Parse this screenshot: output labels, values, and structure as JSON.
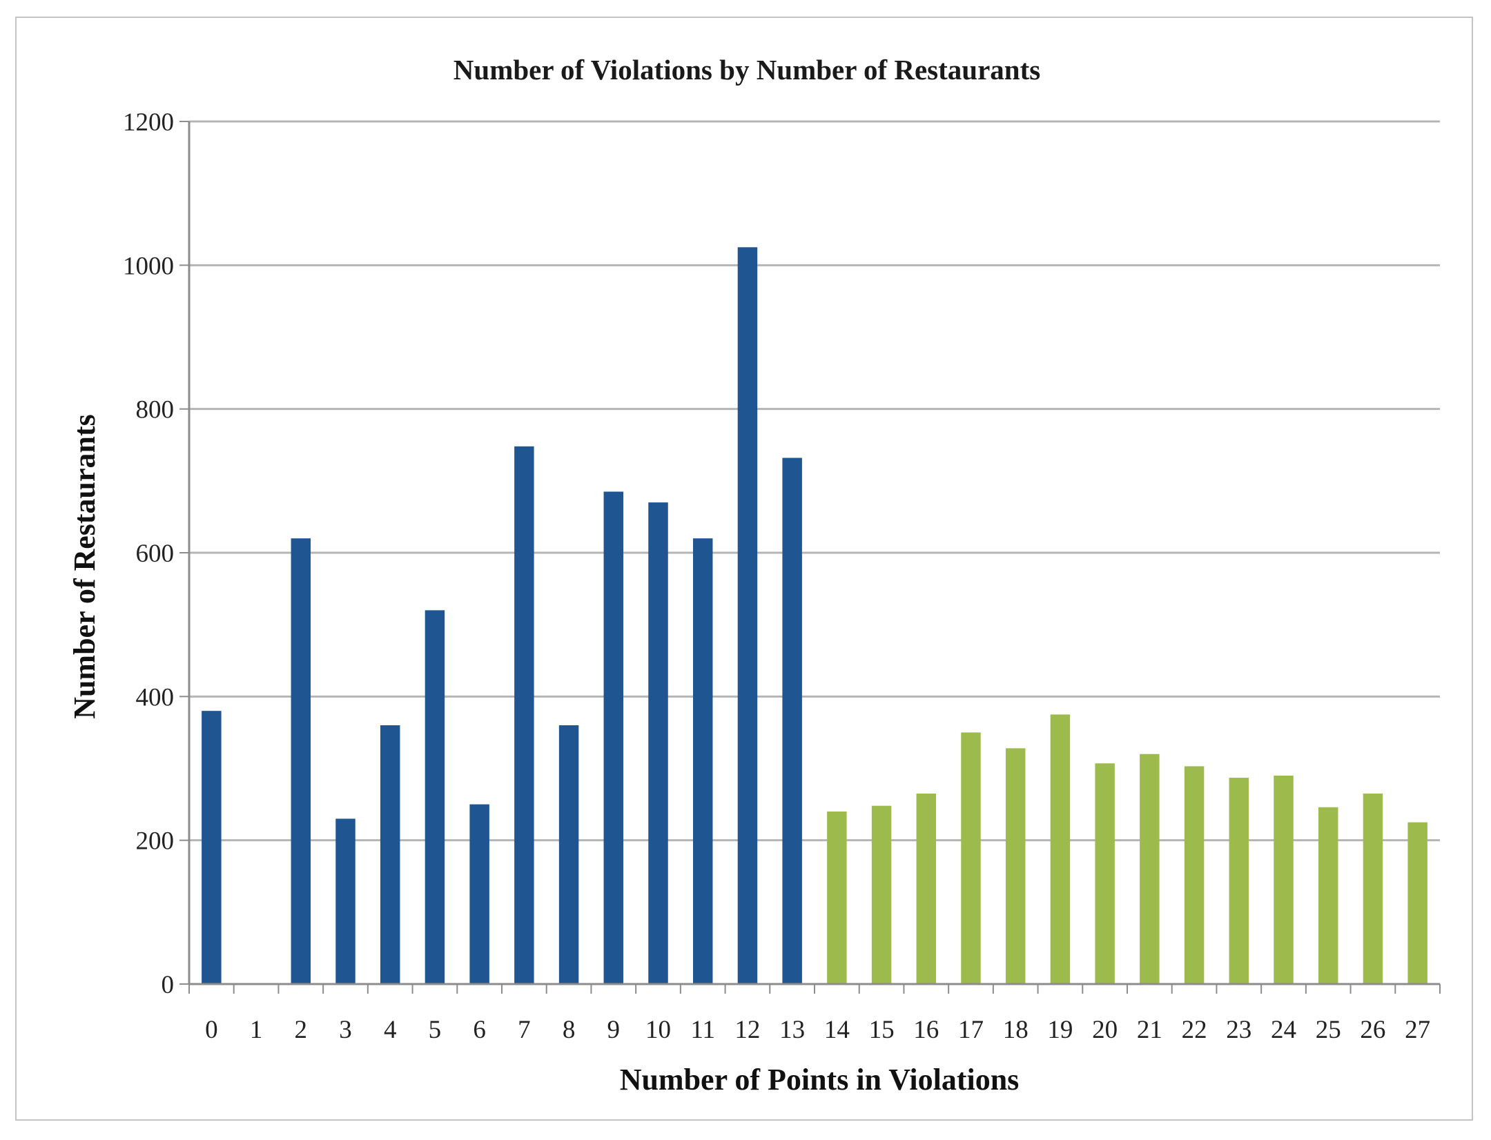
{
  "chart_data": {
    "type": "bar",
    "title": "Number of Violations by Number of Restaurants",
    "xlabel": "Number of Points in Violations",
    "ylabel": "Number of Restaurants",
    "ylim": [
      0,
      1200
    ],
    "yticks": [
      0,
      200,
      400,
      600,
      800,
      1000,
      1200
    ],
    "grid": true,
    "legend": "none",
    "categories": [
      "0",
      "1",
      "2",
      "3",
      "4",
      "5",
      "6",
      "7",
      "8",
      "9",
      "10",
      "11",
      "12",
      "13",
      "14",
      "15",
      "16",
      "17",
      "18",
      "19",
      "20",
      "21",
      "22",
      "23",
      "24",
      "25",
      "26",
      "27"
    ],
    "values": [
      380,
      0,
      620,
      230,
      360,
      520,
      250,
      748,
      360,
      685,
      670,
      620,
      1025,
      732,
      240,
      248,
      265,
      350,
      328,
      375,
      307,
      320,
      303,
      287,
      290,
      246,
      265,
      225
    ],
    "colors": {
      "low_points": "#1f5591",
      "high_points": "#9dbb4d",
      "gridline": "#b5b5b5",
      "axis": "#8c8c8c",
      "frame": "#c4c4c4"
    },
    "color_split_after_category": "13"
  }
}
